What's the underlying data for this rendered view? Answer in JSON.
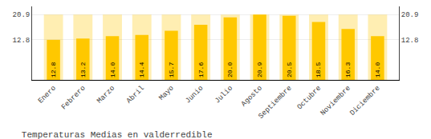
{
  "chart_data": {
    "type": "bar",
    "title": "Temperaturas Medias en valderredible",
    "categories": [
      "Enero",
      "Febrero",
      "Marzo",
      "Abril",
      "Mayo",
      "Junio",
      "Julio",
      "Agosto",
      "Septiembre",
      "Octubre",
      "Noviembre",
      "Diciembre"
    ],
    "values": [
      12.8,
      13.2,
      14.0,
      14.4,
      15.7,
      17.6,
      20.0,
      20.9,
      20.5,
      18.5,
      16.3,
      14.0
    ],
    "value_labels": [
      "12.8",
      "13.2",
      "14.0",
      "14.4",
      "15.7",
      "17.6",
      "20.0",
      "20.9",
      "20.5",
      "18.5",
      "16.3",
      "14.0"
    ],
    "chart_max": 20.9,
    "color": "#FFC800",
    "ylim": [
      0,
      23.5
    ],
    "yticks": [
      12.8,
      20.9
    ],
    "grid": true,
    "data_labels": true
  }
}
